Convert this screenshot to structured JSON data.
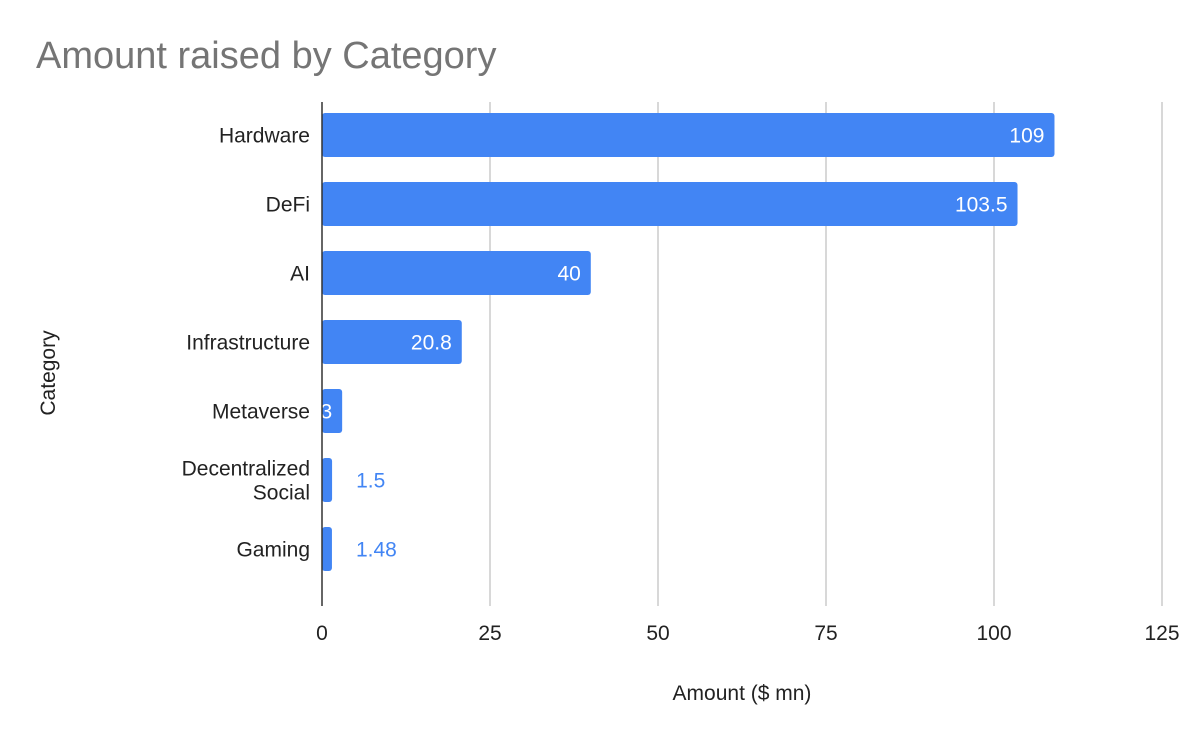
{
  "chart_data": {
    "type": "bar",
    "orientation": "horizontal",
    "title": "Amount raised by Category",
    "xlabel": "Amount ($ mn)",
    "ylabel": "Category",
    "categories": [
      "Hardware",
      "DeFi",
      "AI",
      "Infrastructure",
      "Metaverse",
      "Decentralized Social",
      "Gaming"
    ],
    "category_lines": [
      [
        "Hardware"
      ],
      [
        "DeFi"
      ],
      [
        "AI"
      ],
      [
        "Infrastructure"
      ],
      [
        "Metaverse"
      ],
      [
        "Decentralized",
        "Social"
      ],
      [
        "Gaming"
      ]
    ],
    "values": [
      109,
      103.5,
      40,
      20.8,
      3,
      1.5,
      1.48
    ],
    "data_labels": [
      "109",
      "103.5",
      "40",
      "20.8",
      "3",
      "1.5",
      "1.48"
    ],
    "xlim": [
      0,
      125
    ],
    "xticks": [
      0,
      25,
      50,
      75,
      100,
      125
    ],
    "grid": true,
    "legend": "none",
    "colors": {
      "bar": "#4285f4",
      "label_inside": "#ffffff",
      "label_outside": "#4285f4",
      "title": "#757575",
      "text": "#222222",
      "grid": "#cccccc"
    }
  }
}
